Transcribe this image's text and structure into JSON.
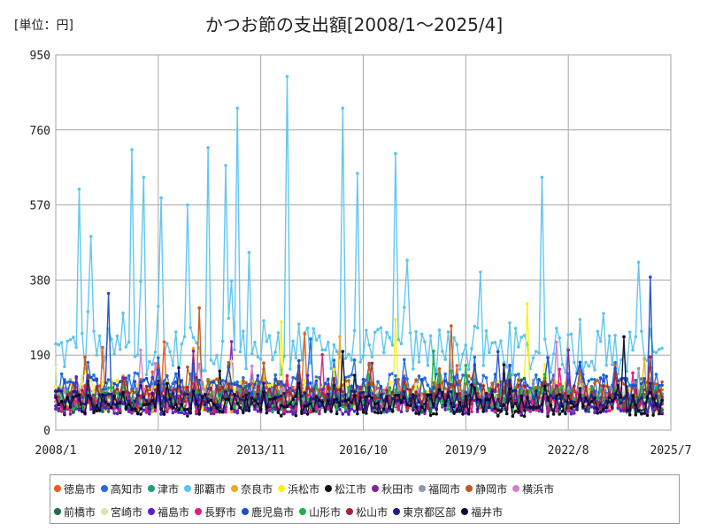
{
  "unit_label": "[単位：円]",
  "chart_data": {
    "type": "line",
    "title": "かつお節の支出額[2008/1～2025/4]",
    "xlabel": "",
    "ylabel": "",
    "ylim": [
      0,
      950
    ],
    "yticks": [
      0,
      190,
      380,
      570,
      760,
      950
    ],
    "xticks": [
      "2008/1",
      "2010/12",
      "2013/11",
      "2016/10",
      "2019/9",
      "2022/8",
      "2025/7"
    ],
    "x_range": [
      "2008/1",
      "2025/7"
    ],
    "grid": true,
    "legend_position": "bottom",
    "series": [
      {
        "name": "徳島市",
        "color": "#f05a1e",
        "base": 85,
        "amp": 30,
        "spike": 250
      },
      {
        "name": "高知市",
        "color": "#1f6fe0",
        "base": 110,
        "amp": 35,
        "spike": 240
      },
      {
        "name": "津市",
        "color": "#1fa07a",
        "base": 70,
        "amp": 25,
        "spike": 150
      },
      {
        "name": "那覇市",
        "color": "#5bc4f0",
        "base": 200,
        "amp": 60,
        "spike": 900
      },
      {
        "name": "奈良市",
        "color": "#f0a81e",
        "base": 75,
        "amp": 30,
        "spike": 300
      },
      {
        "name": "浜松市",
        "color": "#f6f01e",
        "base": 90,
        "amp": 40,
        "spike": 350
      },
      {
        "name": "松江市",
        "color": "#111111",
        "base": 60,
        "amp": 25,
        "spike": 240
      },
      {
        "name": "秋田市",
        "color": "#8a1fa0",
        "base": 65,
        "amp": 25,
        "spike": 270
      },
      {
        "name": "福岡市",
        "color": "#8a9aa8",
        "base": 80,
        "amp": 25,
        "spike": 160
      },
      {
        "name": "静岡市",
        "color": "#c05a1e",
        "base": 95,
        "amp": 35,
        "spike": 340
      },
      {
        "name": "横浜市",
        "color": "#d080c8",
        "base": 85,
        "amp": 25,
        "spike": 250
      },
      {
        "name": "前橋市",
        "color": "#1e6e4a",
        "base": 70,
        "amp": 25,
        "spike": 170
      },
      {
        "name": "宮崎市",
        "color": "#d8e8a8",
        "base": 75,
        "amp": 25,
        "spike": 180
      },
      {
        "name": "福島市",
        "color": "#5a1ed0",
        "base": 60,
        "amp": 20,
        "spike": 150
      },
      {
        "name": "長野市",
        "color": "#e01e7a",
        "base": 70,
        "amp": 25,
        "spike": 200
      },
      {
        "name": "鹿児島市",
        "color": "#1e50c8",
        "base": 100,
        "amp": 35,
        "spike": 450
      },
      {
        "name": "山形市",
        "color": "#1eb050",
        "base": 80,
        "amp": 30,
        "spike": 230
      },
      {
        "name": "松山市",
        "color": "#a02a3a",
        "base": 85,
        "amp": 30,
        "spike": 220
      },
      {
        "name": "東京都区部",
        "color": "#1e1e80",
        "base": 75,
        "amp": 25,
        "spike": 200
      },
      {
        "name": "福井市",
        "color": "#0a0a30",
        "base": 65,
        "amp": 25,
        "spike": 240
      }
    ]
  }
}
